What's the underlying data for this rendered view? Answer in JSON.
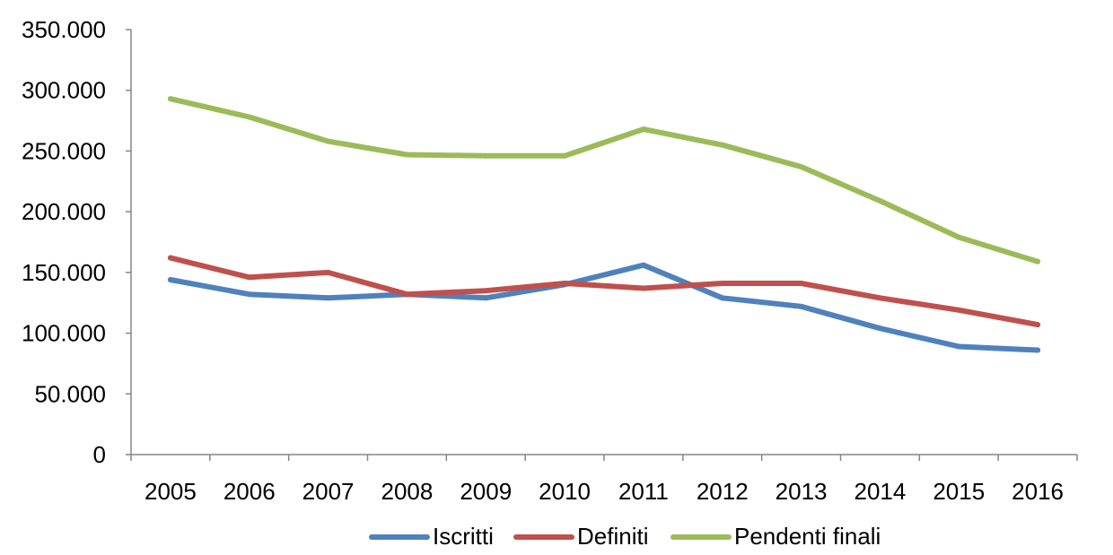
{
  "chart_data": {
    "type": "line",
    "categories": [
      "2005",
      "2006",
      "2007",
      "2008",
      "2009",
      "2010",
      "2011",
      "2012",
      "2013",
      "2014",
      "2015",
      "2016"
    ],
    "series": [
      {
        "name": "Iscritti",
        "color": "#4F81BD",
        "values": [
          144000,
          132000,
          129000,
          132000,
          129000,
          140000,
          156000,
          129000,
          122000,
          104000,
          89000,
          86000
        ]
      },
      {
        "name": "Definiti",
        "color": "#C0504D",
        "values": [
          162000,
          146000,
          150000,
          132000,
          135000,
          141000,
          137000,
          141000,
          141000,
          129000,
          119000,
          107000
        ]
      },
      {
        "name": "Pendenti finali",
        "color": "#9BBB59",
        "values": [
          293000,
          278000,
          258000,
          247000,
          246000,
          246000,
          268000,
          255000,
          237000,
          209000,
          179000,
          159000
        ]
      }
    ],
    "ylim": [
      0,
      350000
    ],
    "yticks": [
      0,
      50000,
      100000,
      150000,
      200000,
      250000,
      300000,
      350000
    ],
    "ytick_labels": [
      "0",
      "50.000",
      "100.000",
      "150.000",
      "200.000",
      "250.000",
      "300.000",
      "350.000"
    ],
    "title": "",
    "xlabel": "",
    "ylabel": "",
    "grid": false,
    "legend_position": "bottom"
  }
}
